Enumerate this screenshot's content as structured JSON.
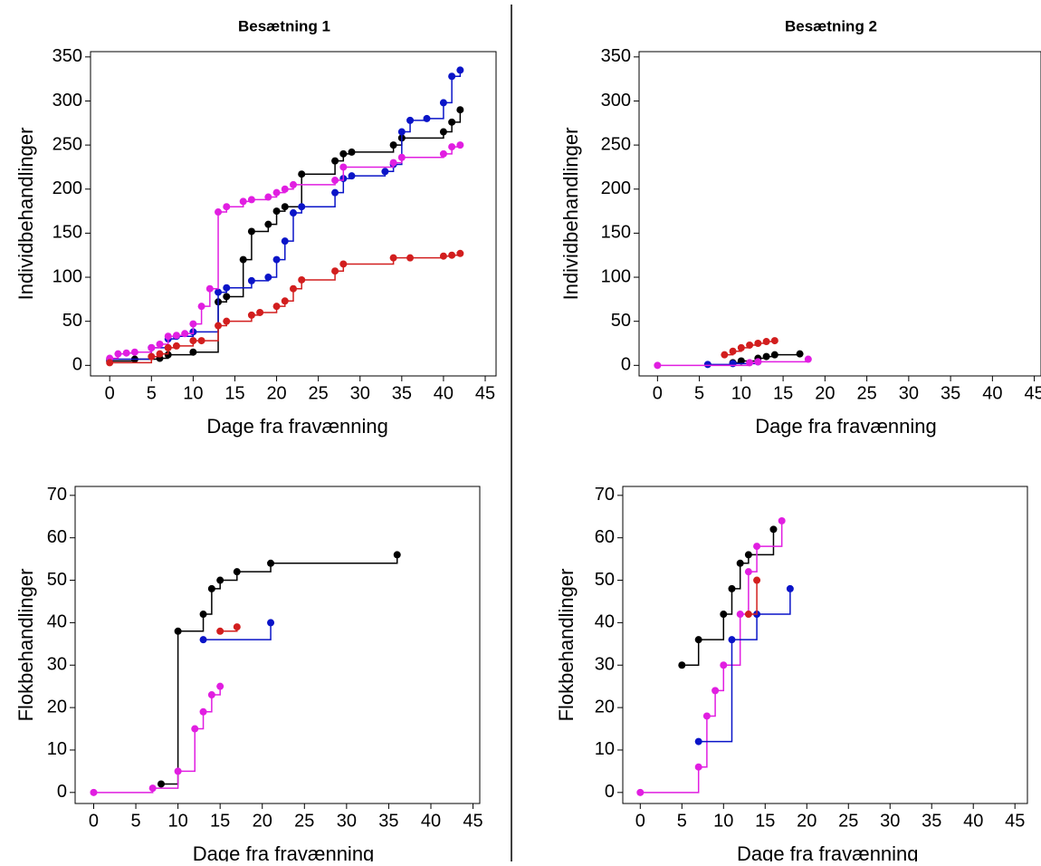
{
  "chart_data": [
    {
      "type": "step",
      "title": "Besætning 1",
      "xlabel": "Dage fra fravænning",
      "ylabel": "Individbehandlinger",
      "xlim": [
        -2.3,
        46.3
      ],
      "xticks": [
        0,
        5,
        10,
        15,
        20,
        25,
        30,
        35,
        40,
        45
      ],
      "ylim": [
        -12,
        356
      ],
      "yticks": [
        0,
        50,
        100,
        150,
        200,
        250,
        300,
        350
      ],
      "series": [
        {
          "color": "#000000",
          "x": [
            0,
            3,
            6,
            7,
            10,
            13,
            14,
            16,
            17,
            19,
            20,
            21,
            23,
            27,
            28,
            29,
            34,
            35,
            40,
            41,
            42
          ],
          "values": [
            5,
            7,
            8,
            12,
            15,
            72,
            78,
            120,
            152,
            160,
            175,
            180,
            217,
            232,
            240,
            242,
            250,
            258,
            265,
            276,
            290
          ]
        },
        {
          "color": "#0a14c8",
          "x": [
            0,
            5,
            7,
            8,
            10,
            13,
            14,
            17,
            19,
            20,
            21,
            22,
            23,
            27,
            28,
            29,
            33,
            34,
            35,
            36,
            38,
            40,
            41,
            42
          ],
          "values": [
            7,
            20,
            30,
            33,
            38,
            83,
            88,
            96,
            100,
            120,
            141,
            173,
            180,
            196,
            212,
            215,
            220,
            228,
            265,
            278,
            280,
            298,
            328,
            335
          ]
        },
        {
          "color": "#e11ee1",
          "x": [
            0,
            1,
            2,
            3,
            5,
            6,
            7,
            8,
            9,
            10,
            11,
            12,
            13,
            14,
            16,
            17,
            19,
            20,
            21,
            22,
            27,
            28,
            34,
            35,
            40,
            41,
            42
          ],
          "values": [
            8,
            13,
            14,
            15,
            20,
            24,
            33,
            34,
            36,
            47,
            67,
            87,
            174,
            180,
            186,
            188,
            191,
            196,
            200,
            205,
            210,
            225,
            230,
            236,
            240,
            248,
            250
          ]
        },
        {
          "color": "#d21e1e",
          "x": [
            0,
            5,
            6,
            7,
            8,
            10,
            11,
            13,
            14,
            17,
            18,
            20,
            21,
            22,
            23,
            27,
            28,
            34,
            36,
            40,
            41,
            42
          ],
          "values": [
            3,
            10,
            13,
            20,
            22,
            28,
            28,
            45,
            50,
            57,
            60,
            67,
            73,
            87,
            97,
            107,
            115,
            122,
            122,
            124,
            125,
            127
          ]
        }
      ]
    },
    {
      "type": "step",
      "title": "Besætning 2",
      "xlabel": "Dage fra fravænning",
      "ylabel": "Individbehandlinger",
      "xlim": [
        -2.2,
        45.8
      ],
      "xticks": [
        0,
        5,
        10,
        15,
        20,
        25,
        30,
        35,
        40,
        45
      ],
      "ylim": [
        -12,
        356
      ],
      "yticks": [
        0,
        50,
        100,
        150,
        200,
        250,
        300,
        350
      ],
      "series": [
        {
          "color": "#d21e1e",
          "x": [
            8,
            9,
            10,
            11,
            12,
            13,
            14
          ],
          "values": [
            12,
            16,
            20,
            23,
            25,
            27,
            28
          ]
        },
        {
          "color": "#000000",
          "x": [
            9,
            10,
            12,
            13,
            14,
            17
          ],
          "values": [
            3,
            5,
            8,
            10,
            12,
            13
          ]
        },
        {
          "color": "#0a14c8",
          "x": [
            6,
            9,
            12
          ],
          "values": [
            1,
            2,
            4
          ]
        },
        {
          "color": "#e11ee1",
          "x": [
            0,
            11,
            12,
            18
          ],
          "values": [
            0,
            3,
            4,
            7
          ]
        }
      ]
    },
    {
      "type": "step",
      "xlabel": "Dage fra fravænning",
      "ylabel": "Flokbehandlinger",
      "xlim": [
        -2.2,
        45.8
      ],
      "xticks": [
        0,
        5,
        10,
        15,
        20,
        25,
        30,
        35,
        40,
        45
      ],
      "ylim": [
        -2.6,
        72.1
      ],
      "yticks": [
        0,
        10,
        20,
        30,
        40,
        50,
        60,
        70
      ],
      "series": [
        {
          "color": "#000000",
          "x": [
            8,
            10,
            13,
            14,
            15,
            17,
            21,
            36
          ],
          "values": [
            2,
            38,
            42,
            48,
            50,
            52,
            54,
            56
          ]
        },
        {
          "color": "#0a14c8",
          "x": [
            13,
            21
          ],
          "values": [
            36,
            40
          ]
        },
        {
          "color": "#d21e1e",
          "x": [
            15,
            17
          ],
          "values": [
            38,
            39
          ]
        },
        {
          "color": "#e11ee1",
          "x": [
            0,
            7,
            10,
            12,
            13,
            14,
            15
          ],
          "values": [
            0,
            1,
            5,
            15,
            19,
            23,
            25
          ]
        }
      ]
    },
    {
      "type": "step",
      "xlabel": "Dage fra fravænning",
      "ylabel": "Flokbehandlinger",
      "xlim": [
        -2.1,
        46.5
      ],
      "xticks": [
        0,
        5,
        10,
        15,
        20,
        25,
        30,
        35,
        40,
        45
      ],
      "ylim": [
        -2.6,
        72.1
      ],
      "yticks": [
        0,
        10,
        20,
        30,
        40,
        50,
        60,
        70
      ],
      "series": [
        {
          "color": "#000000",
          "x": [
            5,
            7,
            10,
            11,
            12,
            13,
            16
          ],
          "values": [
            30,
            36,
            42,
            48,
            54,
            56,
            62
          ]
        },
        {
          "color": "#e11ee1",
          "x": [
            0,
            7,
            8,
            9,
            10,
            12,
            13,
            14,
            17
          ],
          "values": [
            0,
            6,
            18,
            24,
            30,
            42,
            52,
            58,
            64
          ]
        },
        {
          "color": "#0a14c8",
          "x": [
            7,
            11,
            14,
            18
          ],
          "values": [
            12,
            36,
            42,
            48
          ]
        },
        {
          "color": "#d21e1e",
          "x": [
            13,
            14
          ],
          "values": [
            42,
            50
          ]
        }
      ]
    }
  ]
}
